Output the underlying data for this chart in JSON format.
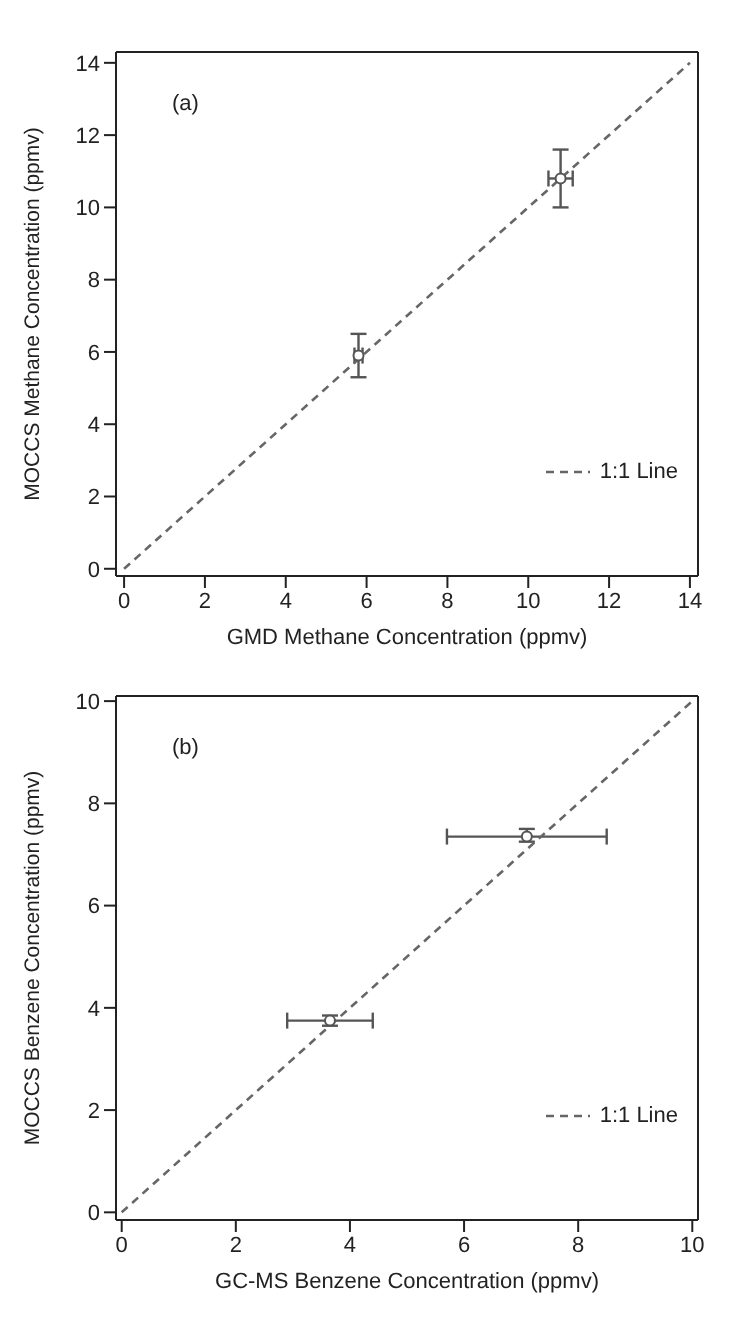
{
  "chart_data": [
    {
      "type": "scatter",
      "xlabel": "GMD Methane Concentration (ppmv)",
      "ylabel": "MOCCS Methane Concentration (ppmv)",
      "annotations": [
        "(a)"
      ],
      "xlim": [
        -0.2,
        14.2
      ],
      "ylim": [
        -0.2,
        14.3
      ],
      "xticks": [
        0,
        2,
        4,
        6,
        8,
        10,
        12,
        14
      ],
      "yticks": [
        0,
        2,
        4,
        6,
        8,
        10,
        12,
        14
      ],
      "legend": "bottom right",
      "grid": false,
      "series": [
        {
          "type": "scatter",
          "color": "#555555",
          "marker": "circle",
          "x": [
            5.8,
            10.8
          ],
          "values": [
            5.9,
            10.8
          ],
          "errors": [
            [
              5.3,
              6.5
            ],
            [
              10.0,
              11.6
            ]
          ],
          "xerrors": [
            [
              5.7,
              5.9
            ],
            [
              10.5,
              11.1
            ]
          ]
        },
        {
          "type": "line",
          "name": "1:1 Line",
          "color": "#666666",
          "line_style": "dashed",
          "marker": "none",
          "x": [
            0,
            14
          ],
          "values": [
            0,
            14
          ]
        }
      ]
    },
    {
      "type": "scatter",
      "xlabel": "GC-MS Benzene Concentration (ppmv)",
      "ylabel": "MOCCS Benzene Concentration (ppmv)",
      "annotations": [
        "(b)"
      ],
      "xlim": [
        -0.1,
        10.1
      ],
      "ylim": [
        -0.15,
        10.1
      ],
      "xticks": [
        0,
        2,
        4,
        6,
        8,
        10
      ],
      "yticks": [
        0,
        2,
        4,
        6,
        8,
        10
      ],
      "legend": "bottom right",
      "grid": false,
      "series": [
        {
          "type": "scatter",
          "color": "#555555",
          "marker": "circle",
          "x": [
            3.65,
            7.1
          ],
          "values": [
            3.75,
            7.35
          ],
          "errors": [
            [
              3.65,
              3.85
            ],
            [
              7.25,
              7.5
            ]
          ],
          "xerrors": [
            [
              2.9,
              4.4
            ],
            [
              5.7,
              8.5
            ]
          ]
        },
        {
          "type": "line",
          "name": "1:1 Line",
          "color": "#666666",
          "line_style": "dashed",
          "marker": "none",
          "x": [
            0,
            10
          ],
          "values": [
            0,
            10
          ]
        }
      ]
    }
  ]
}
